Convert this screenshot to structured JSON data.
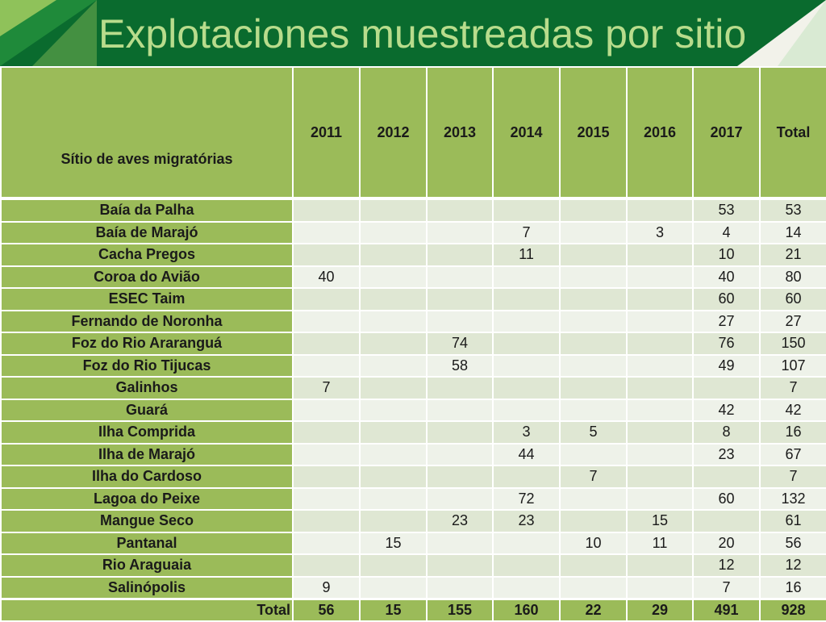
{
  "title": "Explotaciones muestreadas por sitio",
  "colors": {
    "header_bg": "#0a6b2e",
    "title_text": "#b8dc8c",
    "site_col_bg": "#9bbb59",
    "grand_total": "#d40000"
  },
  "table": {
    "site_header": "Sítio de aves migratórias",
    "year_headers": [
      "2011",
      "2012",
      "2013",
      "2014",
      "2015",
      "2016",
      "2017",
      "Total"
    ],
    "rows": [
      {
        "site": "Baía da Palha",
        "values": [
          "",
          "",
          "",
          "",
          "",
          "",
          "53",
          "53"
        ]
      },
      {
        "site": "Baía de Marajó",
        "values": [
          "",
          "",
          "",
          "7",
          "",
          "3",
          "4",
          "14"
        ]
      },
      {
        "site": "Cacha Pregos",
        "values": [
          "",
          "",
          "",
          "11",
          "",
          "",
          "10",
          "21"
        ]
      },
      {
        "site": "Coroa do Avião",
        "values": [
          "40",
          "",
          "",
          "",
          "",
          "",
          "40",
          "80"
        ]
      },
      {
        "site": "ESEC Taim",
        "values": [
          "",
          "",
          "",
          "",
          "",
          "",
          "60",
          "60"
        ]
      },
      {
        "site": "Fernando de Noronha",
        "values": [
          "",
          "",
          "",
          "",
          "",
          "",
          "27",
          "27"
        ]
      },
      {
        "site": "Foz do Rio Araranguá",
        "values": [
          "",
          "",
          "74",
          "",
          "",
          "",
          "76",
          "150"
        ]
      },
      {
        "site": "Foz do Rio Tijucas",
        "values": [
          "",
          "",
          "58",
          "",
          "",
          "",
          "49",
          "107"
        ]
      },
      {
        "site": "Galinhos",
        "values": [
          "7",
          "",
          "",
          "",
          "",
          "",
          "",
          "7"
        ]
      },
      {
        "site": "Guará",
        "values": [
          "",
          "",
          "",
          "",
          "",
          "",
          "42",
          "42"
        ]
      },
      {
        "site": "Ilha Comprida",
        "values": [
          "",
          "",
          "",
          "3",
          "5",
          "",
          "8",
          "16"
        ]
      },
      {
        "site": "Ilha de Marajó",
        "values": [
          "",
          "",
          "",
          "44",
          "",
          "",
          "23",
          "67"
        ]
      },
      {
        "site": "Ilha do Cardoso",
        "values": [
          "",
          "",
          "",
          "",
          "7",
          "",
          "",
          "7"
        ]
      },
      {
        "site": "Lagoa do Peixe",
        "values": [
          "",
          "",
          "",
          "72",
          "",
          "",
          "60",
          "132"
        ]
      },
      {
        "site": "Mangue Seco",
        "values": [
          "",
          "",
          "23",
          "23",
          "",
          "15",
          "",
          "61"
        ]
      },
      {
        "site": "Pantanal",
        "values": [
          "",
          "15",
          "",
          "",
          "10",
          "11",
          "20",
          "56"
        ]
      },
      {
        "site": "Rio Araguaia",
        "values": [
          "",
          "",
          "",
          "",
          "",
          "",
          "12",
          "12"
        ]
      },
      {
        "site": "Salinópolis",
        "values": [
          "9",
          "",
          "",
          "",
          "",
          "",
          "7",
          "16"
        ]
      }
    ],
    "total_label": "Total",
    "totals": [
      "56",
      "15",
      "155",
      "160",
      "22",
      "29",
      "491",
      "928"
    ]
  }
}
